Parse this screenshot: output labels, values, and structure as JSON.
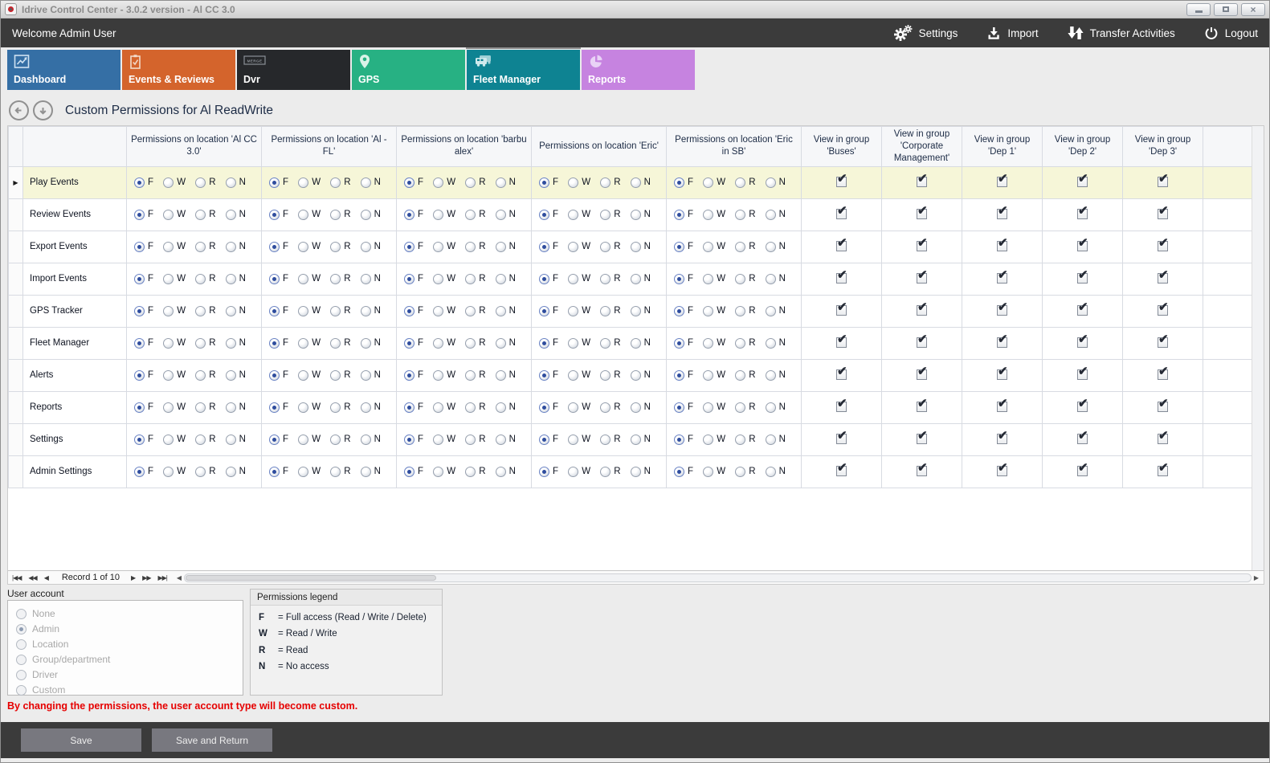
{
  "window": {
    "title": "Idrive Control Center - 3.0.2 version - Al CC 3.0",
    "controls": [
      "minimize",
      "maximize",
      "close"
    ],
    "app_icon": "red-ring-icon"
  },
  "toolbar": {
    "welcome": "Welcome Admin User",
    "actions": [
      {
        "label": "Settings",
        "icon": "gears-icon"
      },
      {
        "label": "Import",
        "icon": "download-icon"
      },
      {
        "label": "Transfer Activities",
        "icon": "transfer-arrows-icon"
      },
      {
        "label": "Logout",
        "icon": "power-icon"
      }
    ]
  },
  "tabs": [
    {
      "label": "Dashboard",
      "color": "#356fa5",
      "icon": "line-chart-icon",
      "active": false
    },
    {
      "label": "Events & Reviews",
      "color": "#d4642c",
      "icon": "clipboard-check-icon",
      "active": false
    },
    {
      "label": "Dvr",
      "color": "#26282b",
      "icon": "merge-badge-icon",
      "active": false
    },
    {
      "label": "GPS",
      "color": "#27b183",
      "icon": "map-pin-icon",
      "active": false
    },
    {
      "label": "Fleet Manager",
      "color": "#0e8392",
      "icon": "vehicles-icon",
      "active": true
    },
    {
      "label": "Reports",
      "color": "#c683e0",
      "icon": "pie-chart-icon",
      "active": false
    }
  ],
  "page": {
    "title": "Custom Permissions for Al ReadWrite"
  },
  "grid": {
    "permission_options": [
      "F",
      "W",
      "R",
      "N"
    ],
    "location_columns": [
      "Permissions on location 'Al CC 3.0'",
      "Permissions on location 'Al - FL'",
      "Permissions on location 'barbu alex'",
      "Permissions on location 'Eric'",
      "Permissions on location 'Eric in SB'"
    ],
    "group_columns": [
      "View in group 'Buses'",
      "View in group 'Corporate Management'",
      "View in group 'Dep 1'",
      "View in group 'Dep 2'",
      "View in group 'Dep 3'"
    ],
    "rows": [
      {
        "label": "Play Events",
        "focused": true,
        "permissions": [
          "F",
          "F",
          "F",
          "F",
          "F"
        ],
        "groups": [
          true,
          true,
          true,
          true,
          true
        ]
      },
      {
        "label": "Review Events",
        "focused": false,
        "permissions": [
          "F",
          "F",
          "F",
          "F",
          "F"
        ],
        "groups": [
          true,
          true,
          true,
          true,
          true
        ]
      },
      {
        "label": "Export Events",
        "focused": false,
        "permissions": [
          "F",
          "F",
          "F",
          "F",
          "F"
        ],
        "groups": [
          true,
          true,
          true,
          true,
          true
        ]
      },
      {
        "label": "Import Events",
        "focused": false,
        "permissions": [
          "F",
          "F",
          "F",
          "F",
          "F"
        ],
        "groups": [
          true,
          true,
          true,
          true,
          true
        ]
      },
      {
        "label": "GPS Tracker",
        "focused": false,
        "permissions": [
          "F",
          "F",
          "F",
          "F",
          "F"
        ],
        "groups": [
          true,
          true,
          true,
          true,
          true
        ]
      },
      {
        "label": "Fleet Manager",
        "focused": false,
        "permissions": [
          "F",
          "F",
          "F",
          "F",
          "F"
        ],
        "groups": [
          true,
          true,
          true,
          true,
          true
        ]
      },
      {
        "label": "Alerts",
        "focused": false,
        "permissions": [
          "F",
          "F",
          "F",
          "F",
          "F"
        ],
        "groups": [
          true,
          true,
          true,
          true,
          true
        ]
      },
      {
        "label": "Reports",
        "focused": false,
        "permissions": [
          "F",
          "F",
          "F",
          "F",
          "F"
        ],
        "groups": [
          true,
          true,
          true,
          true,
          true
        ]
      },
      {
        "label": "Settings",
        "focused": false,
        "permissions": [
          "F",
          "F",
          "F",
          "F",
          "F"
        ],
        "groups": [
          true,
          true,
          true,
          true,
          true
        ]
      },
      {
        "label": "Admin Settings",
        "focused": false,
        "permissions": [
          "F",
          "F",
          "F",
          "F",
          "F"
        ],
        "groups": [
          true,
          true,
          true,
          true,
          true
        ]
      }
    ]
  },
  "navigator": {
    "record_text": "Record 1 of 10",
    "icons": {
      "first": "|◀◀",
      "prior_page": "◀◀",
      "prior": "◀",
      "next": "▶",
      "next_page": "▶▶",
      "last": "▶▶|",
      "scroll_left": "◀",
      "scroll_right": "▶"
    }
  },
  "user_account": {
    "label": "User account",
    "selected": "Admin",
    "options": [
      "None",
      "Admin",
      "Location",
      "Group/department",
      "Driver",
      "Custom"
    ]
  },
  "legend": {
    "title": "Permissions legend",
    "items": [
      {
        "key": "F",
        "desc": "= Full access (Read / Write / Delete)"
      },
      {
        "key": "W",
        "desc": "= Read / Write"
      },
      {
        "key": "R",
        "desc": "= Read"
      },
      {
        "key": "N",
        "desc": "= No access"
      }
    ]
  },
  "warning": "By changing the permissions, the user account type will become custom.",
  "footer": {
    "save": "Save",
    "save_return": "Save and Return"
  },
  "colors": {
    "toolbar": "#3b3b3b",
    "focused_row": "#f6f6d8",
    "warning": "#e60000",
    "radio_dot": "#2f4d9e"
  }
}
